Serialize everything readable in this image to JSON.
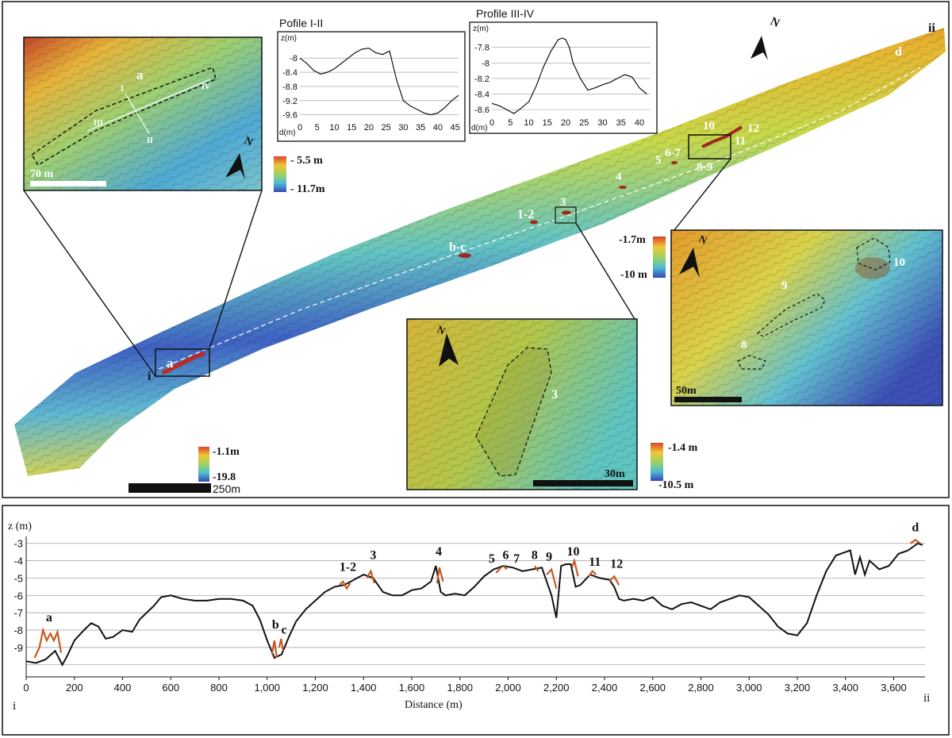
{
  "figure": {
    "map_scale": "250m",
    "map_depth_legend": {
      "top": "-1.1m",
      "bottom": "-19.8"
    },
    "north_label": "N",
    "transect_start": "i",
    "transect_end": "ii",
    "site_labels": [
      "a",
      "b-c",
      "1-2",
      "3",
      "4",
      "5",
      "6-7",
      "8-9",
      "10",
      "11",
      "12",
      "d"
    ],
    "map_legend_right": {
      "top": "-1.7m",
      "bottom": "-10 m"
    }
  },
  "inset_a": {
    "scale": "70 m",
    "legend": {
      "top": "- 5.5 m",
      "bottom": "- 11.7m"
    },
    "labels": {
      "site": "a",
      "p1": "I",
      "p2": "II",
      "p3": "III",
      "p4": "IV"
    }
  },
  "inset_3": {
    "scale": "30m",
    "legend": {
      "top": "-1.4 m",
      "bottom": "-10.5 m"
    },
    "site": "3"
  },
  "inset_10": {
    "scale": "50m",
    "sites": [
      "8",
      "9",
      "10"
    ]
  },
  "profile_1": {
    "title": "Pofile I-II",
    "ylabel": "z(m)",
    "xlabel": "d(m)",
    "y_ticks": [
      "-8",
      "-8.4",
      "-8.8",
      "-9.2",
      "-9.6"
    ],
    "x_ticks": [
      "0",
      "5",
      "10",
      "15",
      "20",
      "25",
      "30",
      "35",
      "40",
      "45"
    ],
    "x": [
      0,
      2,
      4,
      6,
      8,
      10,
      12,
      14,
      16,
      18,
      20,
      22,
      24,
      26,
      28,
      30,
      32,
      34,
      36,
      38,
      40,
      42,
      44,
      46
    ],
    "z": [
      -8.0,
      -8.15,
      -8.35,
      -8.45,
      -8.4,
      -8.3,
      -8.15,
      -8.0,
      -7.85,
      -7.75,
      -7.72,
      -7.85,
      -7.9,
      -7.8,
      -8.6,
      -9.2,
      -9.35,
      -9.45,
      -9.55,
      -9.6,
      -9.55,
      -9.4,
      -9.2,
      -9.05
    ]
  },
  "profile_2": {
    "title": "Profile III-IV",
    "ylabel": "z(m)",
    "xlabel": "d(m)",
    "y_ticks": [
      "-7.8",
      "-8",
      "-8.2",
      "-8.4",
      "-8.6"
    ],
    "x_ticks": [
      "0",
      "5",
      "10",
      "15",
      "20",
      "25",
      "30",
      "35",
      "40"
    ],
    "x": [
      0,
      2,
      4,
      6,
      8,
      10,
      12,
      14,
      16,
      18,
      19,
      20,
      21,
      22,
      24,
      26,
      28,
      30,
      32,
      34,
      36,
      38,
      40,
      42
    ],
    "z": [
      -8.52,
      -8.55,
      -8.6,
      -8.65,
      -8.58,
      -8.5,
      -8.3,
      -8.05,
      -7.85,
      -7.7,
      -7.68,
      -7.7,
      -7.8,
      -8.0,
      -8.2,
      -8.35,
      -8.32,
      -8.28,
      -8.25,
      -8.2,
      -8.15,
      -8.18,
      -8.32,
      -8.4
    ]
  },
  "chart_data": {
    "type": "line",
    "title": "",
    "xlabel": "Distance (m)",
    "ylabel": "z (m)",
    "x_tick_labels": [
      "0",
      "200",
      "400",
      "600",
      "800",
      "1,000",
      "1,200",
      "1,400",
      "1,600",
      "1,800",
      "2,000",
      "2,200",
      "2,400",
      "2,600",
      "2,800",
      "3,000",
      "3,200",
      "3,400",
      "3,600"
    ],
    "y_tick_labels": [
      "-3",
      "-4",
      "-5",
      "-6",
      "-7",
      "-8",
      "-9"
    ],
    "xlim": [
      0,
      3730
    ],
    "ylim": [
      -10.7,
      -2.6
    ],
    "grid": true,
    "start_label": "i",
    "end_label": "ii",
    "series": [
      {
        "name": "longitudinal profile",
        "color": "#111111",
        "x": [
          0,
          40,
          80,
          120,
          150,
          170,
          200,
          240,
          270,
          300,
          330,
          360,
          400,
          440,
          470,
          500,
          530,
          560,
          600,
          650,
          700,
          750,
          800,
          850,
          900,
          940,
          970,
          1000,
          1030,
          1060,
          1090,
          1120,
          1160,
          1200,
          1240,
          1280,
          1320,
          1360,
          1400,
          1440,
          1480,
          1520,
          1560,
          1600,
          1640,
          1680,
          1700,
          1720,
          1740,
          1780,
          1820,
          1860,
          1900,
          1940,
          1980,
          2020,
          2060,
          2100,
          2140,
          2180,
          2200,
          2220,
          2240,
          2260,
          2280,
          2300,
          2340,
          2380,
          2420,
          2440,
          2460,
          2480,
          2520,
          2560,
          2600,
          2640,
          2680,
          2720,
          2760,
          2800,
          2840,
          2880,
          2920,
          2960,
          3000,
          3040,
          3080,
          3120,
          3160,
          3200,
          3240,
          3280,
          3320,
          3360,
          3400,
          3420,
          3440,
          3460,
          3480,
          3500,
          3540,
          3580,
          3620,
          3660,
          3700,
          3720
        ],
        "y": [
          -9.8,
          -9.9,
          -9.7,
          -9.2,
          -10.0,
          -9.5,
          -8.6,
          -8.0,
          -7.6,
          -7.8,
          -8.5,
          -8.4,
          -8.0,
          -8.1,
          -7.4,
          -7.0,
          -6.6,
          -6.1,
          -6.0,
          -6.2,
          -6.3,
          -6.3,
          -6.2,
          -6.2,
          -6.3,
          -6.6,
          -7.4,
          -8.6,
          -9.6,
          -9.4,
          -8.4,
          -7.5,
          -6.8,
          -6.3,
          -5.8,
          -5.5,
          -5.4,
          -5.1,
          -4.8,
          -5.0,
          -5.8,
          -6.0,
          -6.0,
          -5.7,
          -5.6,
          -5.2,
          -4.3,
          -5.8,
          -6.0,
          -5.9,
          -6.0,
          -5.5,
          -4.9,
          -4.5,
          -4.3,
          -4.4,
          -4.6,
          -4.5,
          -4.4,
          -6.0,
          -7.3,
          -4.3,
          -4.2,
          -4.2,
          -5.5,
          -5.4,
          -4.8,
          -5.0,
          -5.1,
          -5.5,
          -6.2,
          -6.3,
          -6.2,
          -6.3,
          -6.1,
          -6.6,
          -6.8,
          -6.5,
          -6.4,
          -6.6,
          -6.8,
          -6.4,
          -6.2,
          -6.0,
          -6.1,
          -6.6,
          -7.1,
          -7.8,
          -8.2,
          -8.3,
          -7.6,
          -6.0,
          -4.6,
          -3.7,
          -3.5,
          -3.4,
          -4.8,
          -3.8,
          -4.8,
          -4.0,
          -4.5,
          -4.3,
          -3.6,
          -3.4,
          -3.0,
          -3.1
        ]
      },
      {
        "name": "archaeological features",
        "color": "#c65a24",
        "segments": [
          {
            "label": "a",
            "x": [
              35,
              55,
              70,
              85,
              100,
              115,
              130,
              145
            ],
            "y": [
              -9.6,
              -9.0,
              -8.0,
              -8.6,
              -8.2,
              -8.6,
              -8.1,
              -9.3
            ]
          },
          {
            "label": "b",
            "x": [
              1020,
              1030,
              1040
            ],
            "y": [
              -9.4,
              -8.6,
              -9.6
            ]
          },
          {
            "label": "c",
            "x": [
              1050,
              1058,
              1066
            ],
            "y": [
              -9.0,
              -8.5,
              -9.2
            ]
          },
          {
            "label": "1-2",
            "x": [
              1300,
              1315,
              1330,
              1345
            ],
            "y": [
              -5.4,
              -5.2,
              -5.6,
              -5.3
            ]
          },
          {
            "label": "3",
            "x": [
              1415,
              1430,
              1445
            ],
            "y": [
              -5.0,
              -4.6,
              -5.3
            ]
          },
          {
            "label": "4",
            "x": [
              1705,
              1715,
              1730
            ],
            "y": [
              -5.3,
              -4.4,
              -5.2
            ]
          },
          {
            "label": "5",
            "x": [
              1950,
              1970
            ],
            "y": [
              -4.7,
              -4.4
            ]
          },
          {
            "label": "6",
            "x": [
              1980,
              1995
            ],
            "y": [
              -4.3,
              -4.5
            ]
          },
          {
            "label": "8",
            "x": [
              2110,
              2125
            ],
            "y": [
              -4.3,
              -4.6
            ]
          },
          {
            "label": "9",
            "x": [
              2160,
              2180,
              2200
            ],
            "y": [
              -4.8,
              -4.5,
              -5.6
            ]
          },
          {
            "label": "10",
            "x": [
              2265,
              2275,
              2290
            ],
            "y": [
              -4.4,
              -4.0,
              -4.9
            ]
          },
          {
            "label": "11",
            "x": [
              2335,
              2350,
              2365
            ],
            "y": [
              -4.9,
              -4.6,
              -4.8
            ]
          },
          {
            "label": "12",
            "x": [
              2420,
              2440,
              2460
            ],
            "y": [
              -5.2,
              -4.9,
              -5.4
            ]
          },
          {
            "label": "d",
            "x": [
              3670,
              3690,
              3710
            ],
            "y": [
              -3.0,
              -2.8,
              -3.0
            ]
          }
        ]
      }
    ],
    "annotations": [
      {
        "text": "a",
        "x": 95,
        "y": -7.5
      },
      {
        "text": "b",
        "x": 1035,
        "y": -7.9
      },
      {
        "text": "c",
        "x": 1070,
        "y": -8.2
      },
      {
        "text": "1-2",
        "x": 1335,
        "y": -4.6
      },
      {
        "text": "3",
        "x": 1440,
        "y": -3.9
      },
      {
        "text": "4",
        "x": 1712,
        "y": -3.7
      },
      {
        "text": "5",
        "x": 1932,
        "y": -4.1
      },
      {
        "text": "6",
        "x": 1990,
        "y": -3.9
      },
      {
        "text": "7",
        "x": 2035,
        "y": -4.1
      },
      {
        "text": "8",
        "x": 2110,
        "y": -3.9
      },
      {
        "text": "9",
        "x": 2170,
        "y": -4.0
      },
      {
        "text": "10",
        "x": 2270,
        "y": -3.7
      },
      {
        "text": "11",
        "x": 2360,
        "y": -4.3
      },
      {
        "text": "12",
        "x": 2450,
        "y": -4.4
      },
      {
        "text": "d",
        "x": 3690,
        "y": -2.3
      }
    ]
  }
}
